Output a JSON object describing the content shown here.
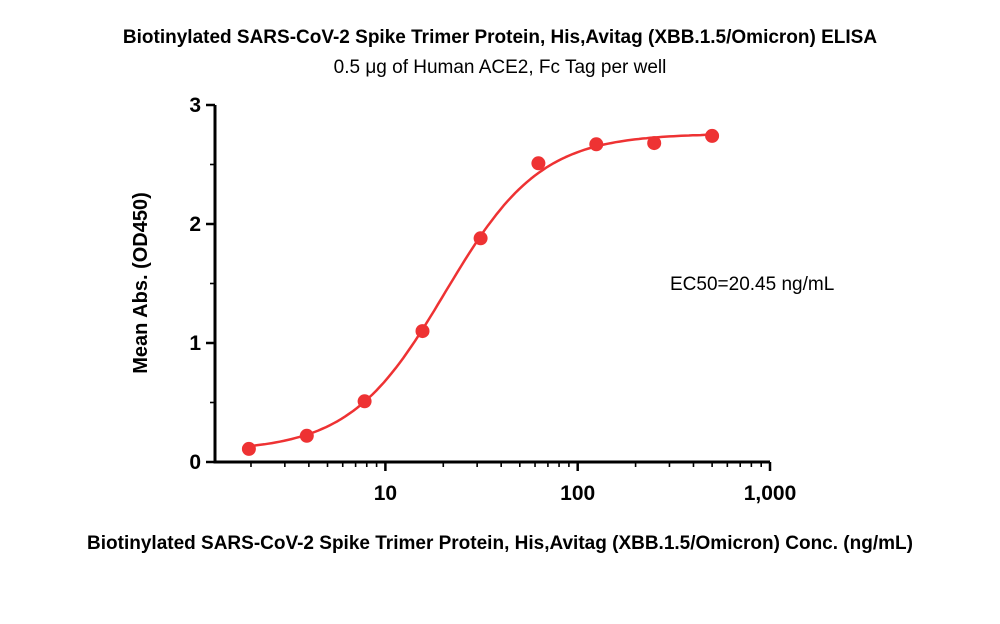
{
  "page": {
    "background": "#ffffff"
  },
  "chart_data": {
    "type": "scatter",
    "title": "Biotinylated SARS-CoV-2 Spike Trimer Protein, His,Avitag (XBB.1.5/Omicron) ELISA",
    "subtitle": "0.5 μg of Human ACE2, Fc Tag per well",
    "xlabel": "Biotinylated SARS-CoV-2 Spike Trimer Protein, His,Avitag (XBB.1.5/Omicron) Conc. (ng/mL)",
    "ylabel": "Mean Abs. (OD450)",
    "annotation": "EC50=20.45 ng/mL",
    "x_scale": "log10",
    "xlim": [
      1.3,
      1000
    ],
    "ylim": [
      0,
      3
    ],
    "x_major_ticks": [
      10,
      100,
      1000
    ],
    "x_major_tick_labels": [
      "10",
      "100",
      "1,000"
    ],
    "y_major_ticks": [
      0,
      1,
      2,
      3
    ],
    "y_minor_ticks": [
      0.5,
      1.5,
      2.5
    ],
    "points": {
      "x": [
        1.95,
        3.9,
        7.8,
        15.6,
        31.25,
        62.5,
        125,
        250,
        500
      ],
      "y": [
        0.11,
        0.22,
        0.51,
        1.1,
        1.88,
        2.51,
        2.67,
        2.68,
        2.74
      ]
    },
    "fit_curve": {
      "model": "4PL",
      "bottom": 0.09,
      "top": 2.76,
      "ec50": 20.45,
      "hill": 1.75
    },
    "color": "#EE3233",
    "grid": false,
    "legend": null
  }
}
